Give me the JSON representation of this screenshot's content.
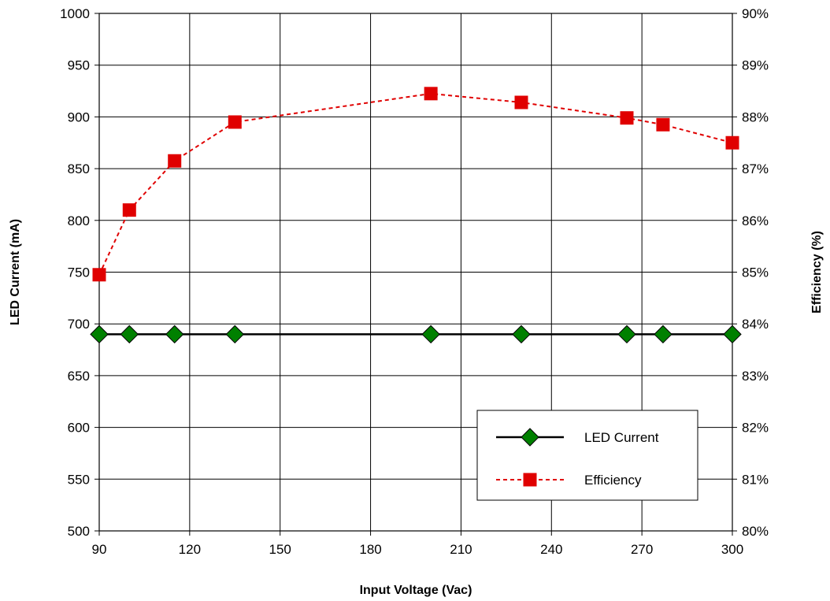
{
  "chart_data": {
    "type": "line",
    "title": "",
    "xlabel": "Input Voltage (Vac)",
    "ylabel": "LED Current (mA)",
    "y2label": "Efficiency (%)",
    "xlim": [
      90,
      300
    ],
    "ylim": [
      500,
      1000
    ],
    "y2lim": [
      80,
      90
    ],
    "x_ticks": [
      "90",
      "120",
      "150",
      "180",
      "210",
      "240",
      "270",
      "300"
    ],
    "y_ticks": [
      "500",
      "550",
      "600",
      "650",
      "700",
      "750",
      "800",
      "850",
      "900",
      "950",
      "1000"
    ],
    "y2_ticks": [
      "80%",
      "81%",
      "82%",
      "83%",
      "84%",
      "85%",
      "86%",
      "87%",
      "88%",
      "89%",
      "90%"
    ],
    "grid": true,
    "legend_position": "bottom-right",
    "series": [
      {
        "name": "LED Current",
        "axis": "left",
        "color": "#008000",
        "line_color": "#000000",
        "marker": "diamond",
        "x": [
          90,
          100,
          115,
          135,
          200,
          230,
          265,
          277,
          300
        ],
        "values": [
          690,
          690,
          690,
          690,
          690,
          690,
          690,
          690,
          690
        ]
      },
      {
        "name": "Efficiency",
        "axis": "right",
        "color": "#e00000",
        "line_color": "#e00000",
        "marker": "square",
        "dashed": true,
        "x": [
          90,
          100,
          115,
          135,
          200,
          230,
          265,
          277,
          300
        ],
        "values": [
          84.95,
          86.2,
          87.15,
          87.9,
          88.45,
          88.28,
          87.98,
          87.85,
          87.5
        ]
      }
    ]
  }
}
